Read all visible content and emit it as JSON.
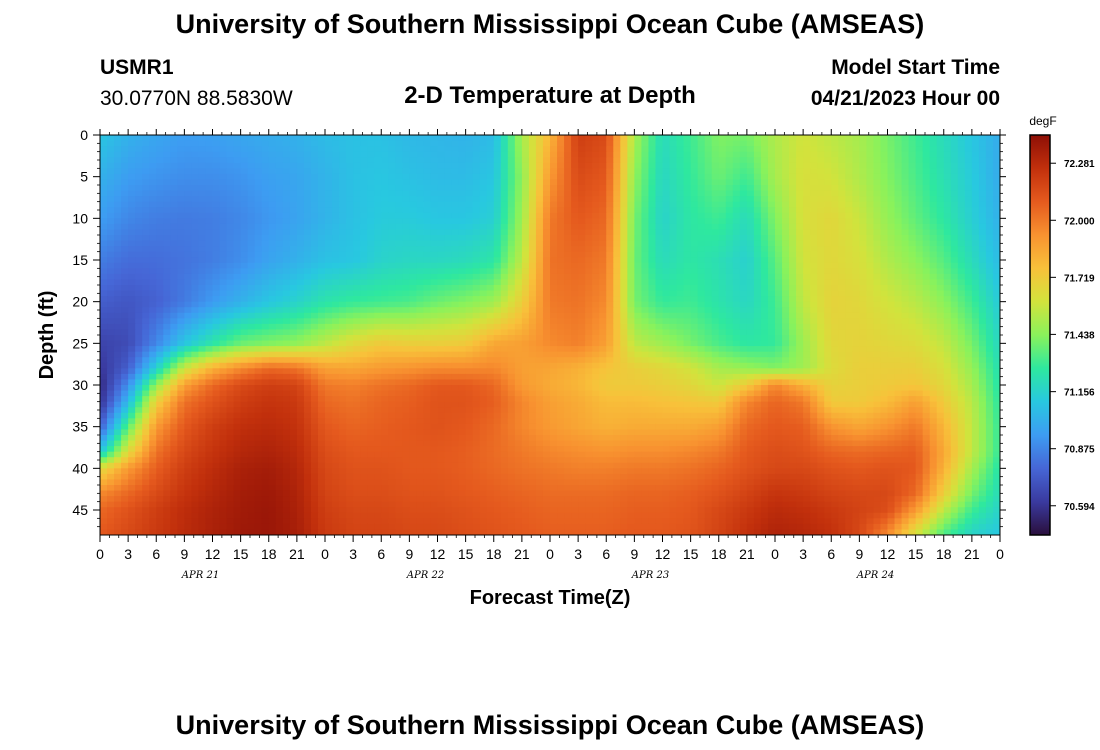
{
  "header": {
    "title": "University of Southern Mississippi Ocean Cube (AMSEAS)",
    "station_id": "USMR1",
    "coords": "30.0770N  88.5830W",
    "subtitle": "2-D Temperature at Depth",
    "start_label": "Model Start Time",
    "start_value": "04/21/2023 Hour 00"
  },
  "footer": {
    "title": "University of Southern Mississippi Ocean Cube (AMSEAS)"
  },
  "chart_data": {
    "type": "heatmap",
    "title": "2-D Temperature at Depth",
    "xlabel": "Forecast Time(Z)",
    "ylabel": "Depth (ft)",
    "x_tick_labels": [
      "0",
      "3",
      "6",
      "9",
      "12",
      "15",
      "18",
      "21",
      "0",
      "3",
      "6",
      "9",
      "12",
      "15",
      "18",
      "21",
      "0",
      "3",
      "6",
      "9",
      "12",
      "15",
      "18",
      "21",
      "0",
      "3",
      "6",
      "9",
      "12",
      "15",
      "18",
      "21",
      "0"
    ],
    "date_labels": [
      "APR 21",
      "APR 22",
      "APR 23",
      "APR 24"
    ],
    "x_range_hours": [
      0,
      96
    ],
    "y_ticks": [
      0,
      5,
      10,
      15,
      20,
      25,
      30,
      35,
      40,
      45
    ],
    "y_range_ft": [
      0,
      48
    ],
    "colorbar": {
      "unit": "degF",
      "ticks": [
        72.281,
        72.0,
        71.719,
        71.438,
        71.156,
        70.875,
        70.594
      ],
      "range": [
        70.45,
        72.42
      ],
      "colors": [
        "#2a0f3c",
        "#3a3a9f",
        "#4666d6",
        "#3d9cf2",
        "#28c8e0",
        "#2ee89f",
        "#8af25b",
        "#d2e33c",
        "#f8c13a",
        "#f89230",
        "#e55a1e",
        "#c2300c",
        "#8e0f06"
      ]
    },
    "depth_levels_ft": [
      0,
      5,
      10,
      15,
      20,
      25,
      28,
      30,
      32,
      35,
      38,
      40,
      43,
      45,
      48
    ],
    "time_hours": [
      0,
      3,
      6,
      9,
      12,
      15,
      18,
      21,
      24,
      27,
      30,
      33,
      36,
      39,
      42,
      45,
      48,
      51,
      54,
      57,
      60,
      63,
      66,
      69,
      72,
      75,
      78,
      81,
      84,
      87,
      90,
      93,
      96
    ],
    "temperature_degF": [
      [
        71.1,
        71.02,
        70.98,
        70.95,
        70.96,
        70.98,
        71.0,
        71.02,
        71.06,
        71.08,
        71.08,
        71.05,
        71.04,
        71.03,
        71.06,
        71.5,
        71.8,
        72.2,
        72.15,
        71.5,
        71.2,
        71.3,
        71.42,
        71.4,
        71.52,
        71.6,
        71.55,
        71.5,
        71.4,
        71.3,
        71.2,
        71.1,
        71.0
      ],
      [
        71.02,
        70.95,
        70.92,
        70.9,
        70.9,
        70.92,
        70.96,
        70.98,
        71.03,
        71.08,
        71.1,
        71.08,
        71.06,
        71.06,
        71.1,
        71.45,
        71.9,
        72.15,
        72.1,
        71.45,
        71.18,
        71.28,
        71.38,
        71.3,
        71.5,
        71.62,
        71.6,
        71.52,
        71.42,
        71.32,
        71.22,
        71.12,
        71.0
      ],
      [
        70.95,
        70.88,
        70.85,
        70.84,
        70.85,
        70.88,
        70.93,
        70.97,
        71.03,
        71.08,
        71.12,
        71.12,
        71.1,
        71.1,
        71.14,
        71.48,
        72.0,
        72.1,
        72.05,
        71.4,
        71.16,
        71.26,
        71.3,
        71.2,
        71.42,
        71.62,
        71.66,
        71.58,
        71.46,
        71.36,
        71.26,
        71.14,
        71.02
      ],
      [
        70.85,
        70.8,
        70.8,
        70.82,
        70.85,
        70.9,
        70.97,
        71.02,
        71.08,
        71.1,
        71.16,
        71.18,
        71.18,
        71.2,
        71.25,
        71.55,
        72.02,
        72.05,
        72.0,
        71.38,
        71.2,
        71.26,
        71.22,
        71.15,
        71.35,
        71.6,
        71.66,
        71.62,
        71.52,
        71.44,
        71.34,
        71.2,
        71.06
      ],
      [
        70.75,
        70.72,
        70.76,
        70.84,
        70.94,
        71.02,
        71.1,
        71.16,
        71.24,
        71.28,
        71.3,
        71.32,
        71.38,
        71.42,
        71.48,
        71.7,
        72.0,
        72.02,
        71.95,
        71.4,
        71.28,
        71.3,
        71.24,
        71.18,
        71.3,
        71.56,
        71.68,
        71.66,
        71.6,
        71.54,
        71.44,
        71.3,
        71.12
      ],
      [
        70.65,
        70.68,
        70.88,
        71.1,
        71.25,
        71.38,
        71.42,
        71.45,
        71.55,
        71.65,
        71.72,
        71.7,
        71.7,
        71.72,
        71.85,
        71.88,
        71.95,
        71.98,
        71.88,
        71.55,
        71.48,
        71.4,
        71.32,
        71.26,
        71.28,
        71.48,
        71.66,
        71.68,
        71.66,
        71.64,
        71.56,
        71.4,
        71.18
      ],
      [
        70.6,
        70.75,
        71.15,
        71.58,
        71.82,
        71.95,
        72.05,
        72.02,
        71.88,
        71.86,
        71.9,
        71.92,
        71.95,
        71.95,
        71.96,
        71.88,
        71.86,
        71.82,
        71.75,
        71.7,
        71.66,
        71.6,
        71.5,
        71.46,
        71.42,
        71.48,
        71.64,
        71.7,
        71.7,
        71.7,
        71.62,
        71.46,
        71.22
      ],
      [
        70.55,
        70.9,
        71.45,
        71.88,
        72.05,
        72.15,
        72.2,
        72.18,
        72.0,
        71.98,
        72.02,
        72.05,
        72.1,
        72.1,
        72.05,
        71.9,
        71.84,
        71.8,
        71.72,
        71.72,
        71.7,
        71.66,
        71.58,
        71.72,
        71.96,
        71.82,
        71.68,
        71.7,
        71.72,
        71.74,
        71.66,
        71.5,
        71.24
      ],
      [
        70.58,
        71.05,
        71.7,
        72.02,
        72.12,
        72.2,
        72.24,
        72.22,
        72.05,
        72.02,
        72.06,
        72.08,
        72.12,
        72.12,
        72.08,
        71.96,
        71.88,
        71.84,
        71.78,
        71.78,
        71.76,
        71.74,
        71.72,
        71.96,
        72.06,
        72.0,
        71.72,
        71.72,
        71.78,
        71.88,
        71.72,
        71.54,
        71.26
      ],
      [
        70.75,
        71.35,
        71.9,
        72.1,
        72.2,
        72.26,
        72.28,
        72.25,
        72.1,
        72.06,
        72.08,
        72.1,
        72.12,
        72.1,
        72.05,
        71.96,
        71.9,
        71.86,
        71.82,
        71.84,
        71.84,
        71.84,
        71.88,
        72.05,
        72.1,
        72.08,
        71.92,
        71.86,
        71.92,
        72.0,
        71.8,
        71.56,
        71.28
      ],
      [
        71.1,
        71.65,
        72.02,
        72.16,
        72.24,
        72.3,
        72.32,
        72.28,
        72.14,
        72.1,
        72.1,
        72.1,
        72.1,
        72.08,
        72.04,
        72.0,
        71.96,
        71.94,
        71.92,
        71.94,
        71.94,
        71.96,
        72.0,
        72.1,
        72.14,
        72.12,
        72.06,
        72.04,
        72.06,
        72.08,
        71.85,
        71.56,
        71.28
      ],
      [
        71.65,
        71.9,
        72.08,
        72.2,
        72.27,
        72.33,
        72.35,
        72.3,
        72.16,
        72.12,
        72.12,
        72.1,
        72.1,
        72.08,
        72.05,
        72.02,
        72.0,
        71.98,
        71.98,
        72.0,
        72.0,
        72.02,
        72.06,
        72.12,
        72.16,
        72.16,
        72.12,
        72.1,
        72.12,
        72.1,
        71.82,
        71.5,
        71.24
      ],
      [
        71.95,
        72.05,
        72.15,
        72.24,
        72.3,
        72.35,
        72.37,
        72.32,
        72.18,
        72.14,
        72.14,
        72.12,
        72.12,
        72.1,
        72.08,
        72.06,
        72.04,
        72.04,
        72.04,
        72.06,
        72.06,
        72.08,
        72.12,
        72.18,
        72.24,
        72.22,
        72.18,
        72.16,
        72.16,
        72.05,
        71.7,
        71.4,
        71.2
      ],
      [
        72.05,
        72.12,
        72.2,
        72.27,
        72.32,
        72.36,
        72.38,
        72.33,
        72.2,
        72.16,
        72.16,
        72.14,
        72.14,
        72.12,
        72.1,
        72.08,
        72.06,
        72.06,
        72.06,
        72.08,
        72.08,
        72.1,
        72.16,
        72.22,
        72.28,
        72.26,
        72.22,
        72.18,
        72.14,
        71.9,
        71.55,
        71.3,
        71.16
      ],
      [
        72.1,
        72.16,
        72.22,
        72.28,
        72.33,
        72.37,
        72.38,
        72.34,
        72.22,
        72.18,
        72.18,
        72.16,
        72.16,
        72.14,
        72.12,
        72.1,
        72.08,
        72.08,
        72.08,
        72.1,
        72.1,
        72.12,
        72.18,
        72.26,
        72.32,
        72.3,
        72.26,
        72.16,
        71.95,
        71.6,
        71.32,
        71.16,
        71.1
      ]
    ]
  }
}
